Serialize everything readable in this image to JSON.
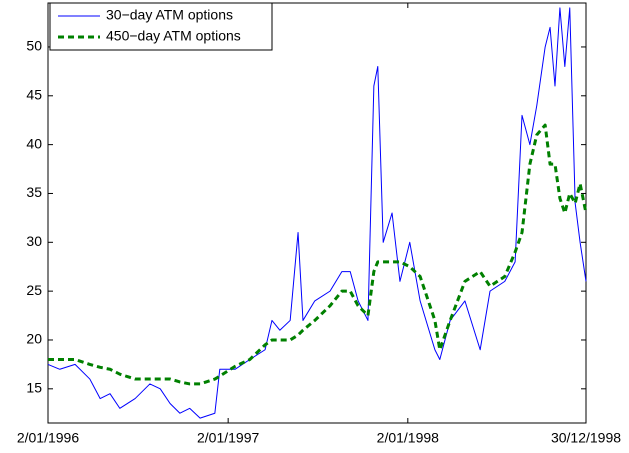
{
  "chart_data": {
    "type": "line",
    "x": [
      "2/01/1996",
      "26/01/1996",
      "26/02/1996",
      "27/03/1996",
      "17/04/1996",
      "7/05/1996",
      "27/05/1996",
      "27/06/1996",
      "27/07/1996",
      "17/08/1996",
      "6/09/1996",
      "26/09/1996",
      "16/10/1996",
      "6/11/1996",
      "6/12/1996",
      "16/12/1996",
      "16/01/1997",
      "15/02/1997",
      "18/03/1997",
      "1/04/1997",
      "17/04/1997",
      "8/05/1997",
      "24/05/1997",
      "3/06/1997",
      "27/06/1997",
      "28/07/1997",
      "21/08/1997",
      "7/09/1997",
      "23/09/1997",
      "13/10/1997",
      "25/10/1997",
      "2/11/1997",
      "13/11/1997",
      "1/12/1997",
      "17/12/1997",
      "6/01/1998",
      "27/01/1998",
      "26/02/1998",
      "8/03/1998",
      "29/03/1998",
      "28/04/1998",
      "29/05/1998",
      "18/06/1998",
      "18/07/1998",
      "8/08/1998",
      "22/08/1998",
      "7/09/1998",
      "21/09/1998",
      "8/10/1998",
      "18/10/1998",
      "28/10/1998",
      "7/11/1998",
      "17/11/1998",
      "27/11/1998",
      "8/12/1998",
      "18/12/1998",
      "30/12/1998"
    ],
    "series": [
      {
        "name": "30−day ATM options",
        "color": "#0000ff",
        "style": "solid",
        "values": [
          17.5,
          17,
          17.5,
          16,
          14,
          14.5,
          13,
          14,
          15.5,
          15,
          13.5,
          12.5,
          13,
          12,
          12.5,
          17,
          17,
          18,
          19,
          22,
          21,
          22,
          31,
          22,
          24,
          25,
          27,
          27,
          24,
          22,
          46,
          48,
          30,
          33,
          26,
          30,
          24,
          19,
          18,
          22,
          24,
          19,
          25,
          26,
          28,
          43,
          40,
          44,
          50,
          52,
          46,
          54,
          48,
          54,
          34,
          30,
          26
        ]
      },
      {
        "name": "450−day ATM options",
        "color": "#008000",
        "style": "dashed",
        "values": [
          18,
          18,
          18,
          17.5,
          17.2,
          17,
          16.5,
          16,
          16,
          16,
          16,
          15.7,
          15.5,
          15.5,
          16,
          16.3,
          17.3,
          18,
          19.5,
          20,
          20,
          20,
          20.5,
          21,
          22,
          23.5,
          25,
          25,
          23.5,
          22.5,
          27,
          28,
          28,
          28,
          28,
          27.5,
          26.5,
          22,
          19,
          22,
          26,
          27,
          25.5,
          26.5,
          29,
          31,
          38,
          41,
          42,
          38,
          38,
          34.5,
          33,
          35,
          34,
          36,
          33
        ]
      }
    ],
    "xlim": [
      "2/01/1996",
      "30/12/1998"
    ],
    "xticks": [
      "2/01/1996",
      "2/01/1997",
      "2/01/1998",
      "30/12/1998"
    ],
    "ylim": [
      11.5,
      54.5
    ],
    "yticks": [
      15,
      20,
      25,
      30,
      35,
      40,
      45,
      50
    ],
    "grid": false,
    "legend": "upper left"
  }
}
